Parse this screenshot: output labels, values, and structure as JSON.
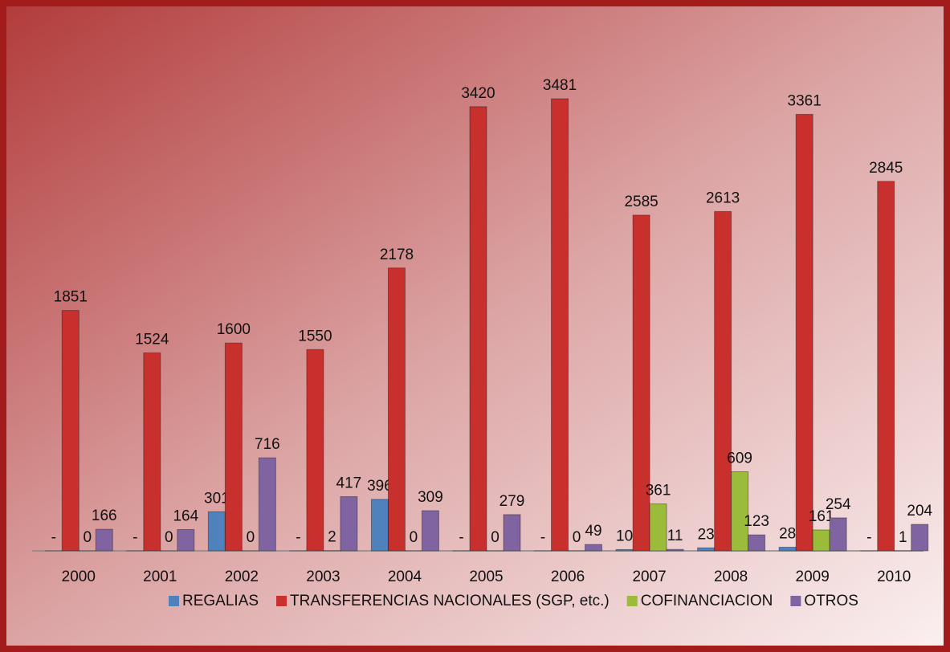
{
  "chart_data": {
    "type": "bar",
    "categories": [
      "2000",
      "2001",
      "2002",
      "2003",
      "2004",
      "2005",
      "2006",
      "2007",
      "2008",
      "2009",
      "2010"
    ],
    "series": [
      {
        "name": "REGALIAS",
        "color": "#4f81bd",
        "values": [
          0,
          0,
          301,
          0,
          396,
          0,
          0,
          10,
          23,
          28,
          0
        ],
        "value_labels": [
          "-",
          "-",
          "301",
          "-",
          "396",
          "-",
          "-",
          "10",
          "23",
          "28",
          "-"
        ]
      },
      {
        "name": "TRANSFERENCIAS NACIONALES (SGP, etc.)",
        "color": "#c8302e",
        "values": [
          1851,
          1524,
          1600,
          1550,
          2178,
          3420,
          3481,
          2585,
          2613,
          3361,
          2845
        ]
      },
      {
        "name": "COFINANCIACION",
        "color": "#9bbb3b",
        "values": [
          0,
          0,
          0,
          2,
          0,
          0,
          0,
          361,
          609,
          161,
          1
        ]
      },
      {
        "name": "OTROS",
        "color": "#8064a2",
        "values": [
          166,
          164,
          716,
          417,
          309,
          279,
          49,
          11,
          123,
          254,
          204
        ]
      }
    ],
    "legend": "bottom"
  }
}
